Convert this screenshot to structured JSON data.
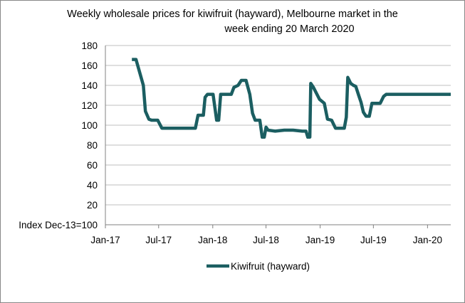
{
  "chart_data": {
    "type": "line",
    "title_line1": "Weekly wholesale prices for kiwifruit (hayward), Melbourne market in the",
    "title_line2": "week ending 20 March 2020",
    "ylabel": "Index Dec-13=100",
    "ylim": [
      0,
      180
    ],
    "yticks": [
      0,
      20,
      40,
      60,
      80,
      100,
      120,
      140,
      160,
      180
    ],
    "ytick_labels": [
      "Index Dec-13=100",
      "20",
      "40",
      "60",
      "80",
      "100",
      "120",
      "140",
      "160",
      "180"
    ],
    "xlim": [
      "2017-01-01",
      "2020-03-20"
    ],
    "xticks": [
      {
        "label": "Jan-17",
        "date": "2017-01-01"
      },
      {
        "label": "Jul-17",
        "date": "2017-07-01"
      },
      {
        "label": "Jan-18",
        "date": "2018-01-01"
      },
      {
        "label": "Jul-18",
        "date": "2018-07-01"
      },
      {
        "label": "Jan-19",
        "date": "2019-01-01"
      },
      {
        "label": "Jul-19",
        "date": "2019-07-01"
      },
      {
        "label": "Jan-20",
        "date": "2020-01-01"
      }
    ],
    "grid": "horizontal",
    "legend": "bottom",
    "series": [
      {
        "name": "Kiwifruit (hayward)",
        "color": "#1b5e61",
        "points": [
          [
            "2017-04-01",
            166
          ],
          [
            "2017-04-15",
            166
          ],
          [
            "2017-05-10",
            140
          ],
          [
            "2017-05-17",
            114
          ],
          [
            "2017-05-29",
            106
          ],
          [
            "2017-06-07",
            105
          ],
          [
            "2017-06-28",
            105
          ],
          [
            "2017-07-12",
            97
          ],
          [
            "2017-08-01",
            97
          ],
          [
            "2017-09-01",
            97
          ],
          [
            "2017-10-01",
            97
          ],
          [
            "2017-11-03",
            97
          ],
          [
            "2017-11-12",
            110
          ],
          [
            "2017-11-30",
            110
          ],
          [
            "2017-12-06",
            128
          ],
          [
            "2017-12-14",
            131
          ],
          [
            "2018-01-02",
            131
          ],
          [
            "2018-01-14",
            105
          ],
          [
            "2018-01-21",
            105
          ],
          [
            "2018-01-28",
            131
          ],
          [
            "2018-02-20",
            131
          ],
          [
            "2018-03-05",
            131
          ],
          [
            "2018-03-14",
            138
          ],
          [
            "2018-03-28",
            140
          ],
          [
            "2018-04-08",
            145
          ],
          [
            "2018-04-24",
            145
          ],
          [
            "2018-05-07",
            131
          ],
          [
            "2018-05-16",
            112
          ],
          [
            "2018-05-25",
            105
          ],
          [
            "2018-06-10",
            105
          ],
          [
            "2018-06-18",
            88
          ],
          [
            "2018-06-25",
            88
          ],
          [
            "2018-07-01",
            98
          ],
          [
            "2018-07-08",
            95
          ],
          [
            "2018-08-01",
            94
          ],
          [
            "2018-09-01",
            95
          ],
          [
            "2018-10-01",
            95
          ],
          [
            "2018-11-01",
            94
          ],
          [
            "2018-11-14",
            94
          ],
          [
            "2018-11-20",
            88
          ],
          [
            "2018-11-27",
            88
          ],
          [
            "2018-11-30",
            142
          ],
          [
            "2018-12-09",
            138
          ],
          [
            "2018-12-30",
            126
          ],
          [
            "2019-01-15",
            122
          ],
          [
            "2019-01-26",
            106
          ],
          [
            "2019-02-09",
            105
          ],
          [
            "2019-02-22",
            97
          ],
          [
            "2019-03-12",
            97
          ],
          [
            "2019-03-24",
            97
          ],
          [
            "2019-03-31",
            108
          ],
          [
            "2019-04-05",
            148
          ],
          [
            "2019-04-15",
            142
          ],
          [
            "2019-04-24",
            140
          ],
          [
            "2019-05-02",
            139
          ],
          [
            "2019-05-12",
            130
          ],
          [
            "2019-05-20",
            123
          ],
          [
            "2019-05-28",
            113
          ],
          [
            "2019-06-06",
            109
          ],
          [
            "2019-06-17",
            109
          ],
          [
            "2019-06-26",
            122
          ],
          [
            "2019-07-08",
            122
          ],
          [
            "2019-07-24",
            122
          ],
          [
            "2019-08-05",
            129
          ],
          [
            "2019-08-14",
            131
          ],
          [
            "2019-09-15",
            131
          ],
          [
            "2019-11-01",
            131
          ],
          [
            "2020-01-01",
            131
          ],
          [
            "2020-03-20",
            131
          ]
        ]
      }
    ]
  }
}
